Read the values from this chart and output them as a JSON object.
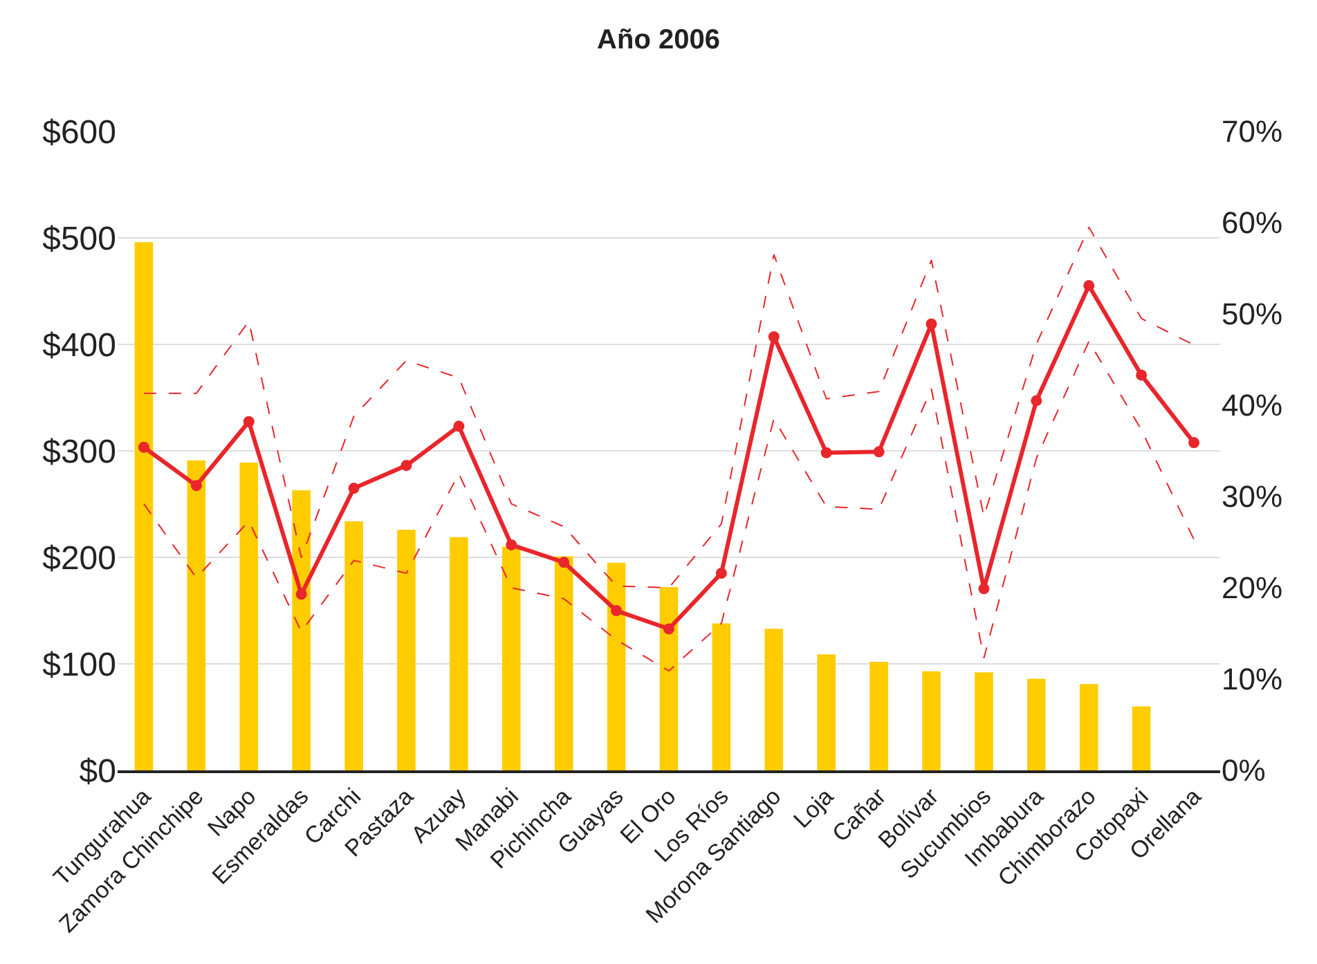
{
  "chart_data": {
    "type": "bar",
    "title": "Año 2006",
    "categories": [
      "Tungurahua",
      "Zamora Chinchipe",
      "Napo",
      "Esmeraldas",
      "Carchi",
      "Pastaza",
      "Azuay",
      "Manabi",
      "Pichincha",
      "Guayas",
      "El Oro",
      "Los Ríos",
      "Morona Santiago",
      "Loja",
      "Cañar",
      "Bolívar",
      "Sucumbios",
      "Imbabura",
      "Chimborazo",
      "Cotopaxi",
      "Orellana"
    ],
    "series": [
      {
        "color": "#ffcc00",
        "values": [
          496,
          291,
          289,
          263,
          234,
          226,
          219,
          210,
          201,
          195,
          172,
          138,
          133,
          109,
          102,
          93,
          92,
          86,
          81,
          60,
          null
        ]
      },
      {
        "type": "line",
        "axis": "y2",
        "color": "#e8262b",
        "marker": "circle",
        "line_style": "solid",
        "values": [
          35.4,
          31.2,
          38.2,
          19.3,
          30.9,
          33.4,
          37.7,
          24.7,
          22.8,
          17.5,
          15.5,
          21.6,
          47.5,
          34.8,
          34.9,
          48.9,
          19.9,
          40.5,
          53.1,
          43.3,
          35.9
        ]
      },
      {
        "type": "line",
        "axis": "y2",
        "color": "#e8262b",
        "marker": "none",
        "line_style": "dashed",
        "values": [
          41.3,
          41.3,
          49.2,
          23.3,
          38.8,
          44.9,
          43.0,
          29.2,
          26.7,
          20.2,
          20.0,
          27.0,
          56.5,
          40.7,
          41.5,
          55.9,
          27.8,
          46.7,
          59.5,
          49.5,
          46.6
        ]
      },
      {
        "type": "line",
        "axis": "y2",
        "color": "#e8262b",
        "marker": "none",
        "line_style": "dashed",
        "values": [
          29.2,
          21.1,
          27.3,
          15.2,
          23.0,
          21.6,
          32.5,
          20.0,
          18.8,
          14.3,
          10.9,
          16.1,
          38.5,
          28.9,
          28.6,
          41.8,
          12.3,
          34.2,
          47.0,
          37.3,
          25.3
        ]
      }
    ],
    "ylim": [
      0,
      600
    ],
    "yticks": [
      {
        "value": 0,
        "label": "$0"
      },
      {
        "value": 100,
        "label": "$100"
      },
      {
        "value": 200,
        "label": "$200"
      },
      {
        "value": 300,
        "label": "$300"
      },
      {
        "value": 400,
        "label": "$400"
      },
      {
        "value": 500,
        "label": "$500"
      },
      {
        "value": 600,
        "label": "$600"
      }
    ],
    "y2lim": [
      0,
      70
    ],
    "y2ticks": [
      {
        "value": 0,
        "label": "0%"
      },
      {
        "value": 10,
        "label": "10%"
      },
      {
        "value": 20,
        "label": "20%"
      },
      {
        "value": 30,
        "label": "30%"
      },
      {
        "value": 40,
        "label": "40%"
      },
      {
        "value": 50,
        "label": "50%"
      },
      {
        "value": 60,
        "label": "60%"
      },
      {
        "value": 70,
        "label": "70%"
      }
    ],
    "grid": "y"
  }
}
